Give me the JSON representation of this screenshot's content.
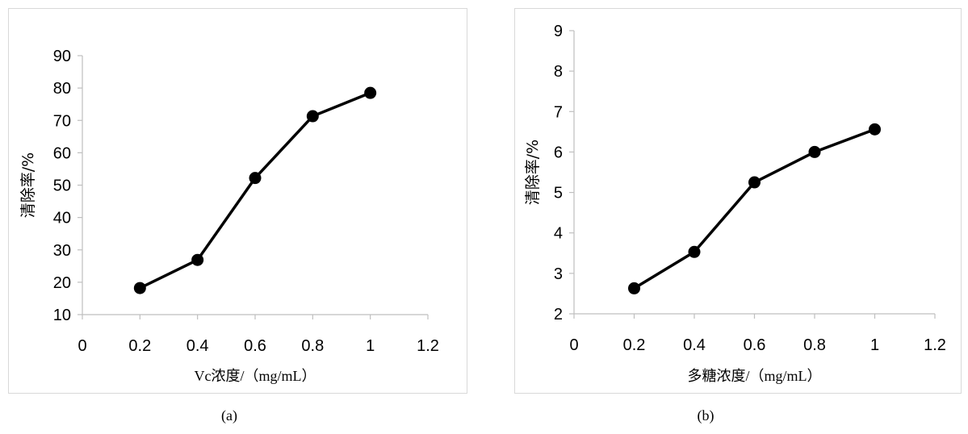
{
  "chart_data": [
    {
      "type": "line",
      "panel_label": "(a)",
      "xlabel": "Vc浓度/（mg/mL）",
      "ylabel": "清除率/%",
      "x": [
        0.2,
        0.4,
        0.6,
        0.8,
        1.0
      ],
      "y": [
        18.2,
        26.9,
        52.2,
        71.3,
        78.5
      ],
      "xlim": [
        0,
        1.2
      ],
      "ylim": [
        10,
        90
      ],
      "xticks": [
        "0",
        "0.2",
        "0.4",
        "0.6",
        "0.8",
        "1",
        "1.2"
      ],
      "yticks": [
        "10",
        "20",
        "30",
        "40",
        "50",
        "60",
        "70",
        "80",
        "90"
      ],
      "grid": false,
      "line_color": "#000000",
      "marker": "filled-circle"
    },
    {
      "type": "line",
      "panel_label": "(b)",
      "xlabel": "多糖浓度/（mg/mL）",
      "ylabel": "清除率/%",
      "x": [
        0.2,
        0.4,
        0.6,
        0.8,
        1.0
      ],
      "y": [
        2.63,
        3.53,
        5.25,
        6.0,
        6.56
      ],
      "xlim": [
        0,
        1.2
      ],
      "ylim": [
        2,
        9
      ],
      "xticks": [
        "0",
        "0.2",
        "0.4",
        "0.6",
        "0.8",
        "1",
        "1.2"
      ],
      "yticks": [
        "2",
        "3",
        "4",
        "5",
        "6",
        "7",
        "8",
        "9"
      ],
      "grid": false,
      "line_color": "#000000",
      "marker": "filled-circle"
    }
  ]
}
